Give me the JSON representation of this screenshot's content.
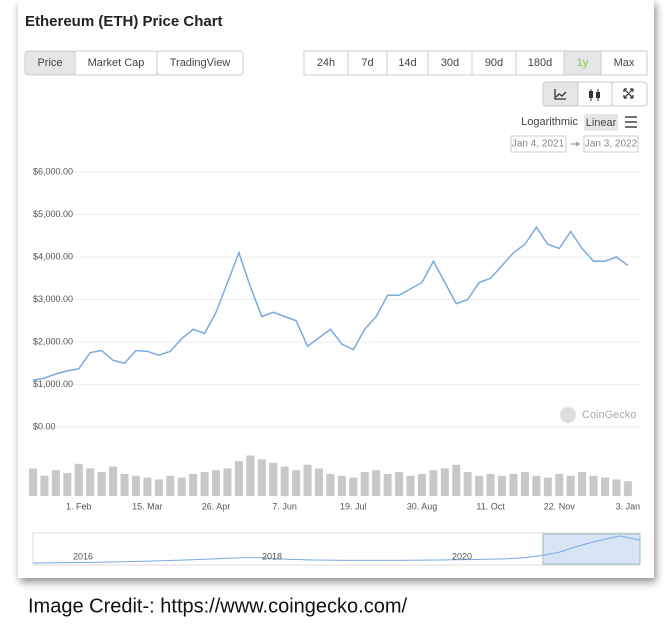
{
  "chart_data": {
    "type": "line",
    "title": "Ethereum (ETH) Price Chart",
    "categories": [
      null,
      null,
      null,
      null,
      "1. Feb",
      null,
      null,
      null,
      null,
      null,
      "15. Mar",
      null,
      null,
      null,
      null,
      null,
      "26. Apr",
      null,
      null,
      null,
      null,
      null,
      "7. Jun",
      null,
      null,
      null,
      null,
      null,
      "19. Jul",
      null,
      null,
      null,
      null,
      null,
      "30. Aug",
      null,
      null,
      null,
      null,
      null,
      "11. Oct",
      null,
      null,
      null,
      null,
      null,
      "22. Nov",
      null,
      null,
      null,
      null,
      null,
      "3. Jan"
    ],
    "series": [
      {
        "color": "#7aaae0",
        "values": [
          1100,
          1150,
          1250,
          1320,
          1370,
          1750,
          1800,
          1570,
          1500,
          1800,
          1780,
          1690,
          1780,
          2080,
          2300,
          2200,
          2700,
          3400,
          4100,
          3300,
          2600,
          2700,
          2600,
          2500,
          1900,
          2100,
          2300,
          1950,
          1820,
          2300,
          2600,
          3100,
          3100,
          3250,
          3400,
          3900,
          3400,
          2900,
          3000,
          3400,
          3500,
          3800,
          4100,
          4300,
          4700,
          4300,
          4200,
          4600,
          4200,
          3900,
          3900,
          4000,
          3800
        ]
      },
      {
        "color": "#c8c8c8",
        "axis": "y2",
        "values": [
          30,
          22,
          28,
          25,
          35,
          30,
          26,
          32,
          24,
          22,
          20,
          18,
          22,
          20,
          24,
          26,
          28,
          30,
          38,
          44,
          40,
          36,
          32,
          28,
          34,
          30,
          24,
          22,
          20,
          26,
          28,
          24,
          26,
          22,
          24,
          28,
          30,
          34,
          26,
          22,
          24,
          22,
          24,
          26,
          22,
          20,
          24,
          22,
          26,
          22,
          20,
          18,
          16
        ]
      }
    ],
    "ylim": [
      0,
      6000
    ],
    "yticks": [
      {
        "value": 0,
        "label": "$0.00"
      },
      {
        "value": 1000,
        "label": "$1,000.00"
      },
      {
        "value": 2000,
        "label": "$2,000.00"
      },
      {
        "value": 3000,
        "label": "$3,000.00"
      },
      {
        "value": 4000,
        "label": "$4,000.00"
      },
      {
        "value": 5000,
        "label": "$5,000.00"
      },
      {
        "value": 6000,
        "label": "$6,000.00"
      }
    ],
    "y2lim": [
      0,
      50
    ],
    "grid": true
  },
  "ui": {
    "tabs": [
      "Price",
      "Market Cap",
      "TradingView"
    ],
    "ranges": [
      "24h",
      "7d",
      "14d",
      "30d",
      "90d",
      "180d",
      "1y",
      "Max"
    ],
    "active_range": 6,
    "scales": [
      "Logarithmic",
      "Linear"
    ],
    "date_range": [
      "Jan 4, 2021",
      "Jan 3, 2022"
    ],
    "watermark": "CoinGecko",
    "navigator_labels": [
      "2016",
      "2018",
      "2020"
    ]
  },
  "credit": "Image Credit-: https://www.coingecko.com/"
}
